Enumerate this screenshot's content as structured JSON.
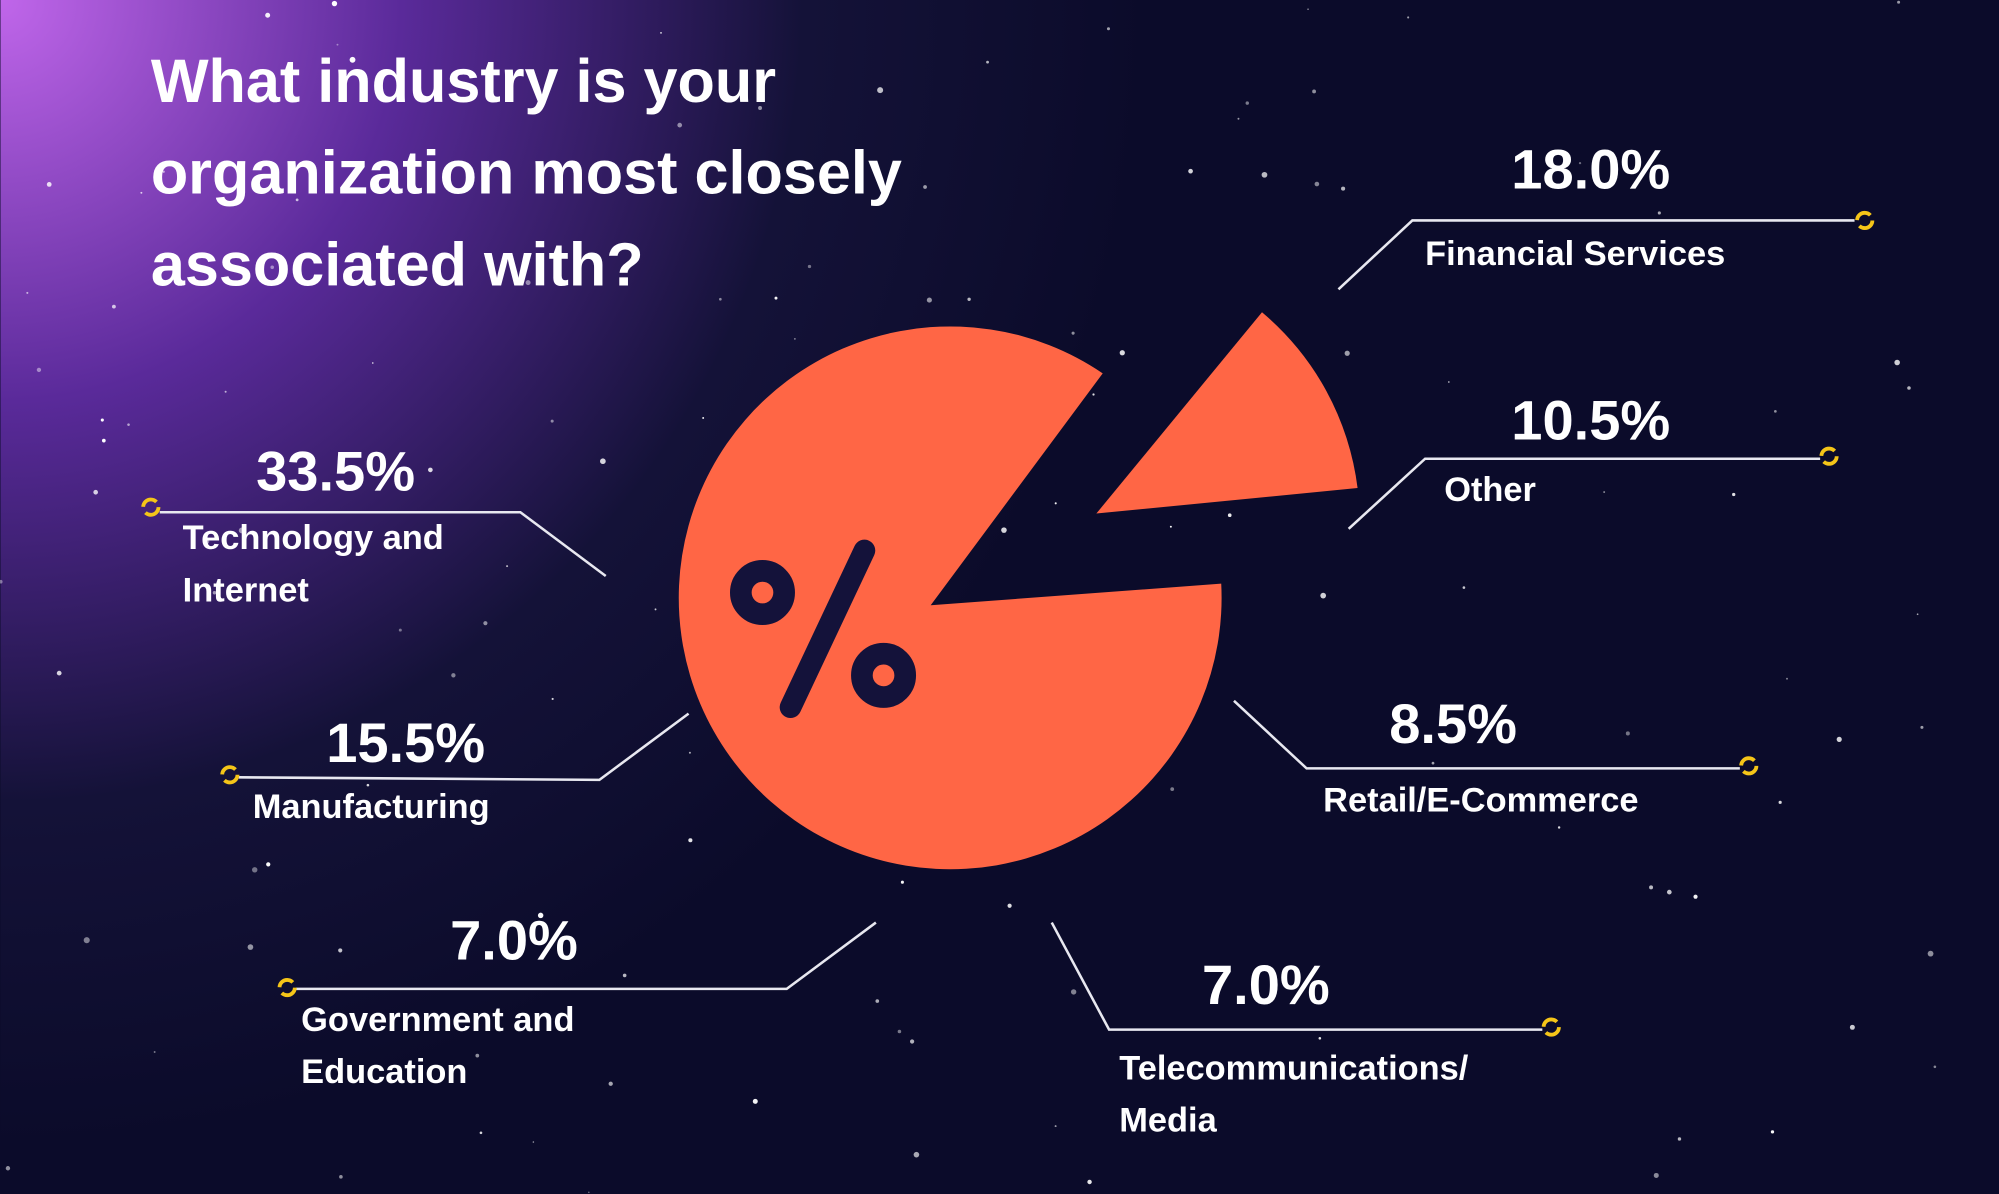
{
  "title": [
    "What industry is your",
    "organization most closely",
    "associated with?"
  ],
  "items": [
    {
      "value": "18.0%",
      "label": [
        "Financial Services"
      ]
    },
    {
      "value": "10.5%",
      "label": [
        "Other"
      ]
    },
    {
      "value": "8.5%",
      "label": [
        "Retail/E-Commerce"
      ]
    },
    {
      "value": "7.0%",
      "label": [
        "Telecommunications/",
        "Media"
      ]
    },
    {
      "value": "7.0%",
      "label": [
        "Government and",
        "Education"
      ]
    },
    {
      "value": "15.5%",
      "label": [
        "Manufacturing"
      ]
    },
    {
      "value": "33.5%",
      "label": [
        "Technology and",
        "Internet"
      ]
    }
  ]
}
